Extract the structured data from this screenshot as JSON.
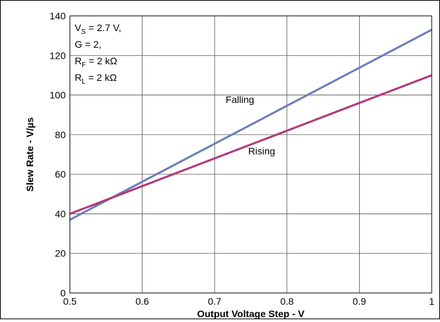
{
  "chart_data": {
    "type": "line",
    "title": "",
    "xlabel": "Output Voltage Step - V",
    "ylabel": "Slew Rate - V/µs",
    "xlim": [
      0.5,
      1.0
    ],
    "ylim": [
      0,
      140
    ],
    "xticks": [
      0.5,
      0.6,
      0.7,
      0.8,
      0.9,
      1
    ],
    "xtick_labels": [
      "0.5",
      "0.6",
      "0.7",
      "0.8",
      "0.9",
      "1"
    ],
    "yticks": [
      0,
      20,
      40,
      60,
      80,
      100,
      120,
      140
    ],
    "ytick_labels": [
      "0",
      "20",
      "40",
      "60",
      "80",
      "100",
      "120",
      "140"
    ],
    "grid": true,
    "series": [
      {
        "name": "Falling",
        "color": "#6b7fb8",
        "x": [
          0.5,
          1.0
        ],
        "y": [
          37,
          133
        ]
      },
      {
        "name": "Rising",
        "color": "#b03a7a",
        "x": [
          0.5,
          1.0
        ],
        "y": [
          40,
          110
        ]
      }
    ],
    "series_labels": [
      {
        "text": "Falling",
        "x": 0.735,
        "y": 96
      },
      {
        "text": "Rising",
        "x": 0.765,
        "y": 70
      }
    ],
    "conditions": [
      {
        "main": "V",
        "sub": "S",
        "rest": " = 2.7 V,"
      },
      {
        "main": "G = 2,",
        "sub": "",
        "rest": ""
      },
      {
        "main": "R",
        "sub": "F",
        "rest": " = 2 kΩ"
      },
      {
        "main": "R",
        "sub": "L",
        "rest": " = 2 kΩ"
      }
    ]
  }
}
